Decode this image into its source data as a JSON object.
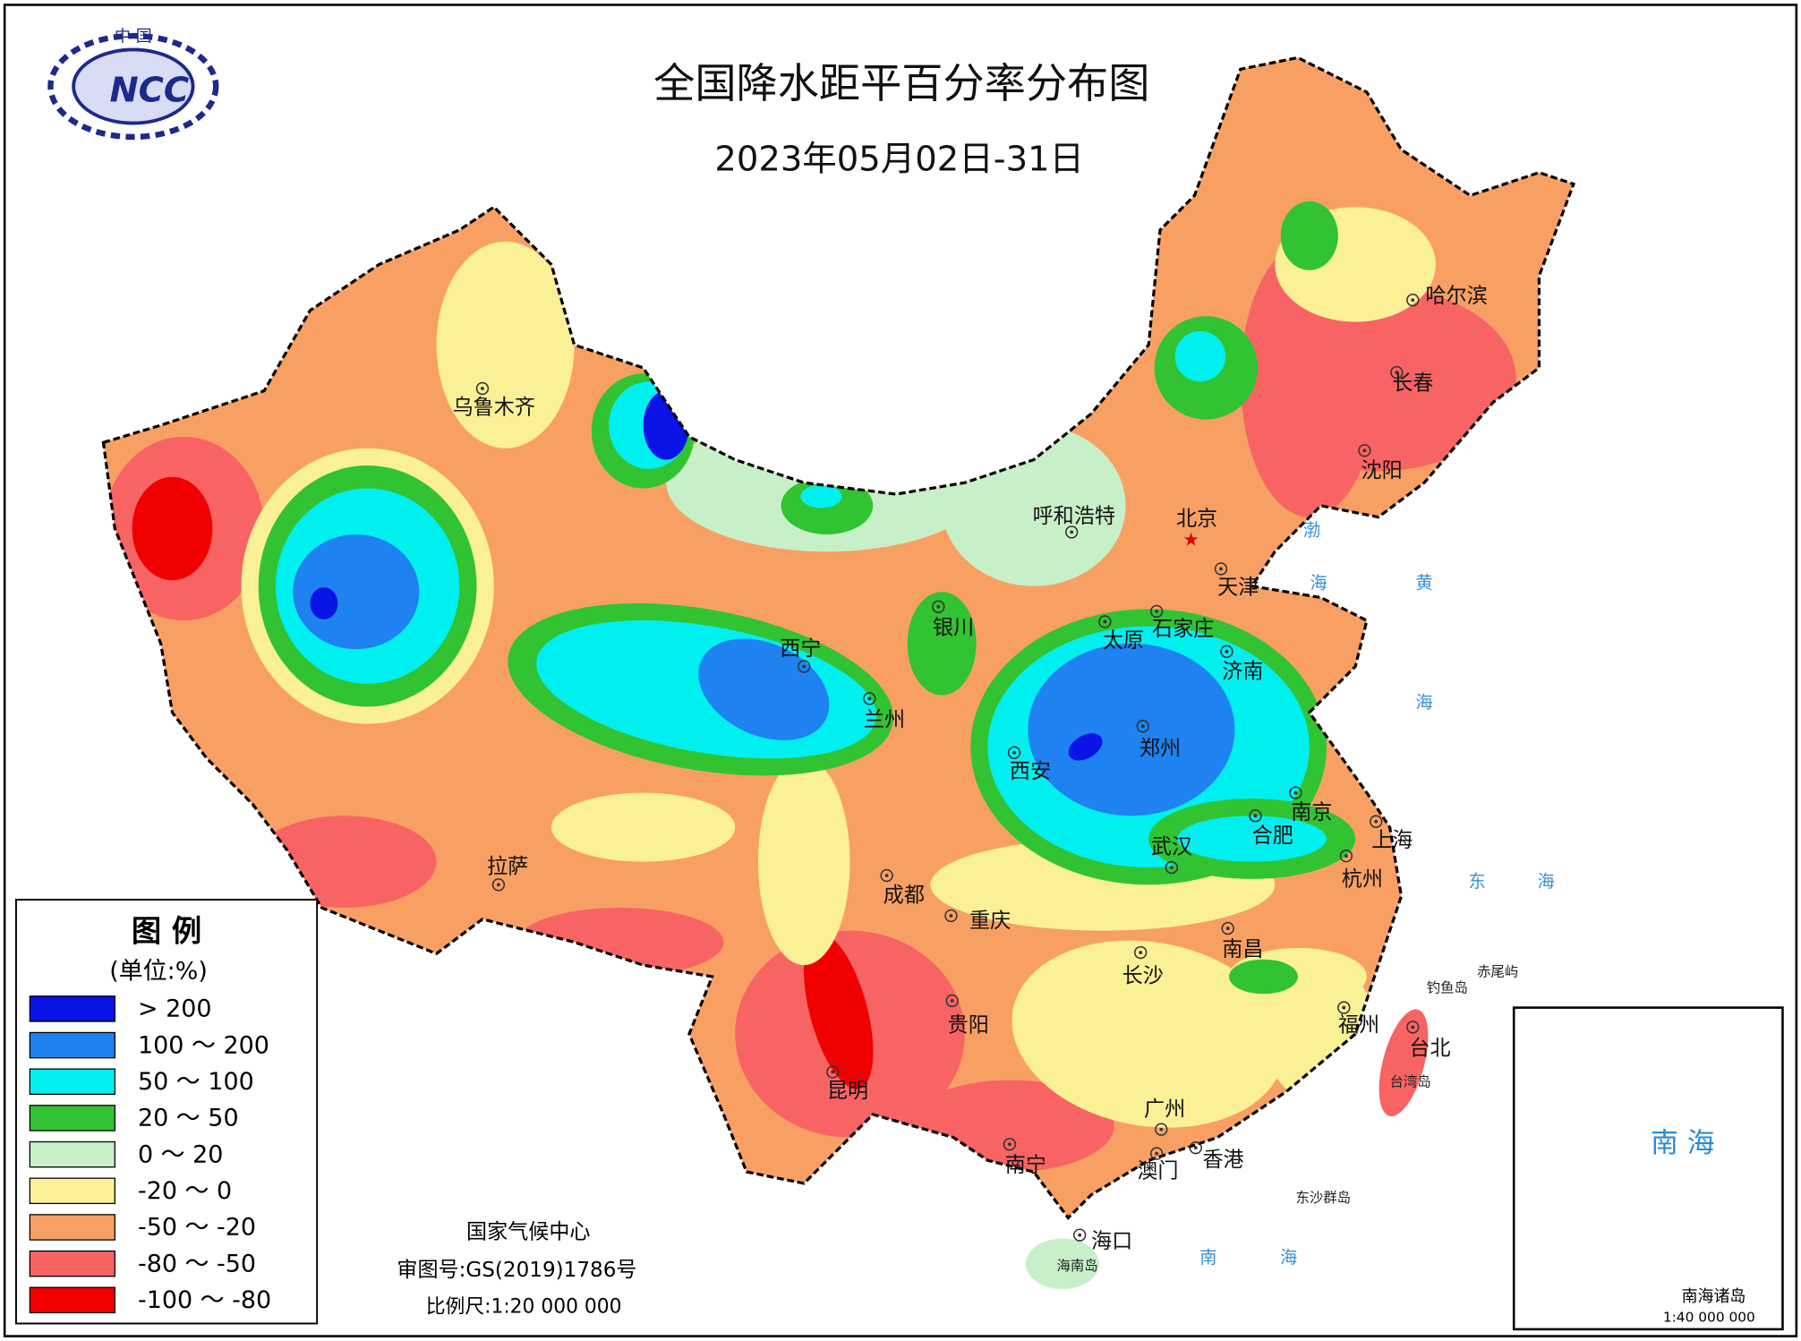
{
  "header": {
    "logo_top": "中 国",
    "logo_text": "NCC",
    "title": "全国降水距平百分率分布图",
    "subtitle": "2023年05月02日-31日"
  },
  "legend": {
    "title": "图 例",
    "unit": "(单位:%)",
    "items": [
      {
        "label": "> 200",
        "color": "#0a14e6"
      },
      {
        "label": "100 ～ 200",
        "color": "#1e82f0"
      },
      {
        "label": "50 ～ 100",
        "color": "#00f0f0"
      },
      {
        "label": "20 ～ 50",
        "color": "#32c332"
      },
      {
        "label": "0 ～ 20",
        "color": "#c8f0c8"
      },
      {
        "label": "-20 ～ 0",
        "color": "#faf096"
      },
      {
        "label": "-50 ～ -20",
        "color": "#f8a064"
      },
      {
        "label": "-80 ～ -50",
        "color": "#f86464"
      },
      {
        "label": "-100 ～ -80",
        "color": "#f00000"
      }
    ]
  },
  "cities": [
    "乌鲁木齐",
    "呼和浩特",
    "北京",
    "天津",
    "石家庄",
    "太原",
    "济南",
    "银川",
    "西宁",
    "兰州",
    "西安",
    "郑州",
    "南京",
    "合肥",
    "上海",
    "武汉",
    "杭州",
    "拉萨",
    "成都",
    "重庆",
    "长沙",
    "南昌",
    "贵阳",
    "福州",
    "台北",
    "昆明",
    "广州",
    "南宁",
    "香港",
    "澳门",
    "海口",
    "哈尔滨",
    "长春",
    "沈阳"
  ],
  "seas": [
    "渤",
    "海",
    "黄",
    "海",
    "东",
    "海",
    "南",
    "海"
  ],
  "places": [
    "钓鱼岛",
    "赤尾屿",
    "台湾岛",
    "东沙群岛",
    "海南岛"
  ],
  "inset": {
    "title": "南 海",
    "caption": "南海诸岛",
    "scale": "1:40 000 000"
  },
  "footer": {
    "org": "国家气候中心",
    "approval": "审图号:GS(2019)1786号",
    "scale": "比例尺:1:20 000 000"
  }
}
